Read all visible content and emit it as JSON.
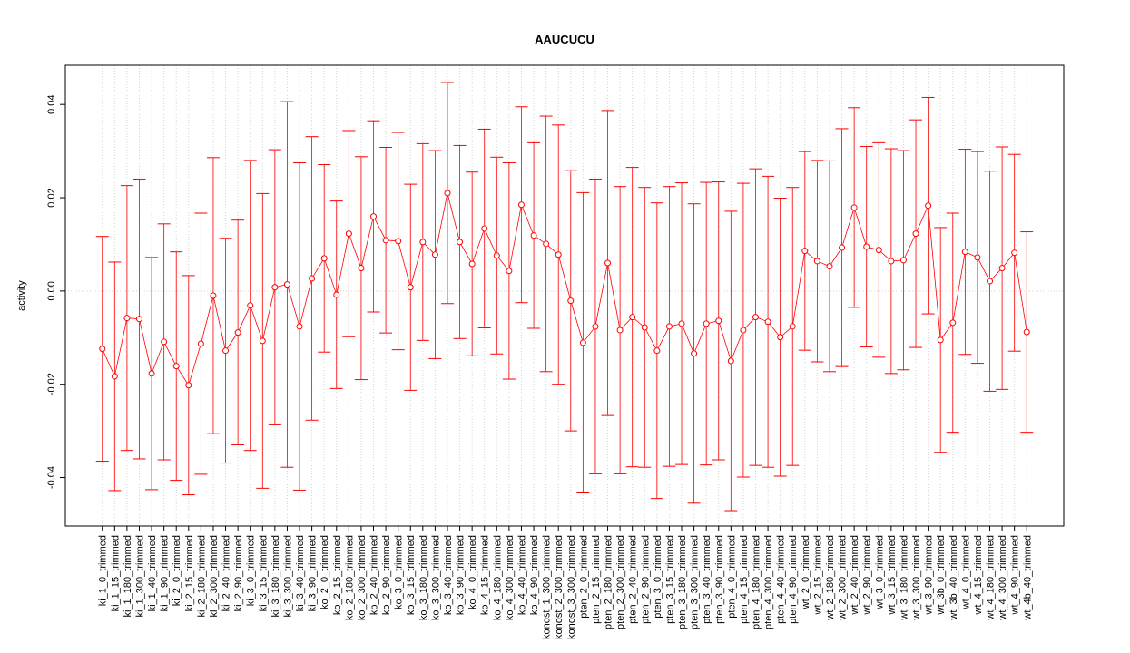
{
  "chart_data": {
    "type": "errorbar",
    "title": "AAUCUCU",
    "y_label": "activity",
    "categories": [
      "ki_1_0_trimmed",
      "ki_1_15_trimmed",
      "ki_1_180_trimmed",
      "ki_1_300_trimmed",
      "ki_1_40_trimmed",
      "ki_1_90_trimmed",
      "ki_2_0_trimmed",
      "ki_2_15_trimmed",
      "ki_2_180_trimmed",
      "ki_2_300_trimmed",
      "ki_2_40_trimmed",
      "ki_2_90_trimmed",
      "ki_3_0_trimmed",
      "ki_3_15_trimmed",
      "ki_3_180_trimmed",
      "ki_3_300_trimmed",
      "ki_3_40_trimmed",
      "ki_3_90_trimmed",
      "ko_2_0_trimmed",
      "ko_2_15_trimmed",
      "ko_2_180_trimmed",
      "ko_2_300_trimmed",
      "ko_2_40_trimmed",
      "ko_2_90_trimmed",
      "ko_3_0_trimmed",
      "ko_3_15_trimmed",
      "ko_3_180_trimmed",
      "ko_3_300_trimmed",
      "ko_3_40_trimmed",
      "ko_3_90_trimmed",
      "ko_4_0_trimmed",
      "ko_4_15_trimmed",
      "ko_4_180_trimmed",
      "ko_4_300_trimmed",
      "ko_4_40_trimmed",
      "ko_4_90_trimmed",
      "konost_1_300_trimmed",
      "konost_2_300_trimmed",
      "konost_3_300_trimmed",
      "pten_2_0_trimmed",
      "pten_2_15_trimmed",
      "pten_2_180_trimmed",
      "pten_2_300_trimmed",
      "pten_2_40_trimmed",
      "pten_2_90_trimmed",
      "pten_3_0_trimmed",
      "pten_3_15_trimmed",
      "pten_3_180_trimmed",
      "pten_3_300_trimmed",
      "pten_3_40_trimmed",
      "pten_3_90_trimmed",
      "pten_4_0_trimmed",
      "pten_4_15_trimmed",
      "pten_4_180_trimmed",
      "pten_4_300_trimmed",
      "pten_4_40_trimmed",
      "pten_4_90_trimmed",
      "wt_2_0_trimmed",
      "wt_2_15_trimmed",
      "wt_2_180_trimmed",
      "wt_2_300_trimmed",
      "wt_2_40_trimmed",
      "wt_2_90_trimmed",
      "wt_3_0_trimmed",
      "wt_3_15_trimmed",
      "wt_3_180_trimmed",
      "wt_3_300_trimmed",
      "wt_3_90_trimmed",
      "wt_3b_0_trimmed",
      "wt_3b_40_trimmed",
      "wt_4_0_trimmed",
      "wt_4_15_trimmed",
      "wt_4_180_trimmed",
      "wt_4_300_trimmed",
      "wt_4_90_trimmed",
      "wt_4b_40_trimmed"
    ],
    "values": [
      -0.0124,
      -0.0183,
      -0.0058,
      -0.006,
      -0.0177,
      -0.0109,
      -0.0161,
      -0.0202,
      -0.0113,
      -0.001,
      -0.0128,
      -0.0089,
      -0.0031,
      -0.0107,
      0.0008,
      0.0014,
      -0.0076,
      0.0027,
      0.007,
      -0.0008,
      0.0123,
      0.0049,
      0.016,
      0.0109,
      0.0107,
      0.0008,
      0.0105,
      0.0078,
      0.021,
      0.0105,
      0.0058,
      0.0134,
      0.0076,
      0.0043,
      0.0185,
      0.0119,
      0.0101,
      0.0078,
      -0.0021,
      -0.0111,
      -0.0076,
      0.006,
      -0.0084,
      -0.0056,
      -0.0078,
      -0.0128,
      -0.0076,
      -0.007,
      -0.0134,
      -0.007,
      -0.0064,
      -0.015,
      -0.0084,
      -0.0056,
      -0.0066,
      -0.0099,
      -0.0076,
      0.0086,
      0.0064,
      0.0053,
      0.0093,
      0.0179,
      0.0095,
      0.0088,
      0.0064,
      0.0066,
      0.0123,
      0.0183,
      -0.0105,
      -0.0068,
      0.0084,
      0.0072,
      0.0021,
      0.0049,
      0.0082,
      -0.0088
    ],
    "errors": [
      0.0241,
      0.0245,
      0.0284,
      0.03,
      0.0249,
      0.0253,
      0.0245,
      0.0235,
      0.028,
      0.0296,
      0.0241,
      0.0241,
      0.0311,
      0.0316,
      0.0295,
      0.0392,
      0.0351,
      0.0304,
      0.0201,
      0.0201,
      0.0221,
      0.0239,
      0.0205,
      0.0199,
      0.0233,
      0.0221,
      0.0211,
      0.0223,
      0.0237,
      0.0207,
      0.0197,
      0.0213,
      0.0211,
      0.0232,
      0.021,
      0.0199,
      0.0274,
      0.0278,
      0.0279,
      0.0322,
      0.0316,
      0.0327,
      0.0308,
      0.0321,
      0.03,
      0.0317,
      0.03,
      0.0302,
      0.0321,
      0.0303,
      0.0298,
      0.0321,
      0.0315,
      0.0318,
      0.0312,
      0.0298,
      0.0298,
      0.0213,
      0.0216,
      0.0226,
      0.0255,
      0.0214,
      0.0215,
      0.023,
      0.0241,
      0.0235,
      0.0244,
      0.0232,
      0.0241,
      0.0235,
      0.022,
      0.0227,
      0.0236,
      0.026,
      0.0211,
      0.0215
    ],
    "color": "#ff0000",
    "ylim": [
      -0.0504,
      0.0484
    ],
    "yticks": [
      -0.04,
      -0.02,
      {
        "value": 0,
        "label": "0.00"
      },
      0.02,
      0.04
    ],
    "reference_line": 0,
    "grid": true
  }
}
